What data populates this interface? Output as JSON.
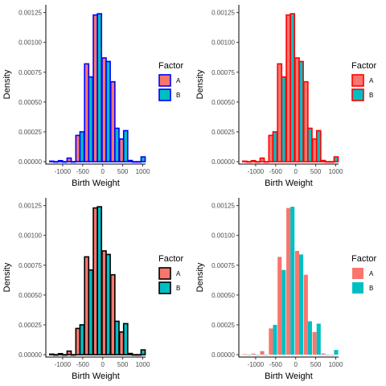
{
  "chart_data": [
    {
      "type": "bar",
      "panel": "top-left",
      "xlabel": "Birth Weight",
      "ylabel": "Density",
      "legend_title": "Factor",
      "legend_position": "right",
      "series_names": [
        "A",
        "B"
      ],
      "fills": [
        "#F8766D",
        "#00BFC4"
      ],
      "outline": "#0000FF",
      "dodge": true
    },
    {
      "type": "bar",
      "panel": "top-right",
      "xlabel": "Birth Weight",
      "ylabel": "Density",
      "legend_title": "Factor",
      "legend_position": "right",
      "series_names": [
        "A",
        "B"
      ],
      "fills": [
        "#F8766D",
        "#00BFC4"
      ],
      "outline": "#FF0000",
      "dodge": true
    },
    {
      "type": "bar",
      "panel": "bottom-left",
      "xlabel": "Birth Weight",
      "ylabel": "Density",
      "legend_title": "Factor",
      "legend_position": "right",
      "series_names": [
        "A",
        "B"
      ],
      "fills": [
        "#F8766D",
        "#00BFC4"
      ],
      "outline": "#000000",
      "dodge": true
    },
    {
      "type": "bar",
      "panel": "bottom-right",
      "xlabel": "Birth Weight",
      "ylabel": "Density",
      "legend_title": "Factor",
      "legend_position": "right",
      "series_names": [
        "A",
        "B"
      ],
      "fills": [
        "#F8766D",
        "#00BFC4"
      ],
      "outline": "none",
      "dodge": true
    }
  ],
  "shared": {
    "bin_width": 218,
    "bin_centers": [
      -1222,
      -1004,
      -786,
      -568,
      -350,
      -132,
      86,
      304,
      522,
      740,
      958
    ],
    "values_A": [
      4.3e-06,
      8.6e-06,
      3e-05,
      0.00022,
      0.00082,
      0.00123,
      0.00087,
      0.00067,
      0.00019,
      1e-05,
      0
    ],
    "values_B": [
      0,
      0,
      0,
      0.00025,
      0.00071,
      0.00124,
      0.00084,
      0.00028,
      0.00026,
      0,
      4e-05
    ],
    "x_ticks": [
      "-1000",
      "-500",
      "0",
      "500",
      "1000"
    ],
    "x_tick_values": [
      -1000,
      -500,
      0,
      500,
      1000
    ],
    "y_ticks": [
      "0.00000",
      "0.00025",
      "0.00050",
      "0.00075",
      "0.00100",
      "0.00125"
    ],
    "y_tick_values": [
      0,
      0.00025,
      0.0005,
      0.00075,
      0.001,
      0.00125
    ],
    "xlim": [
      -1420,
      1070
    ],
    "ylim": [
      -2e-05,
      0.001315
    ]
  }
}
